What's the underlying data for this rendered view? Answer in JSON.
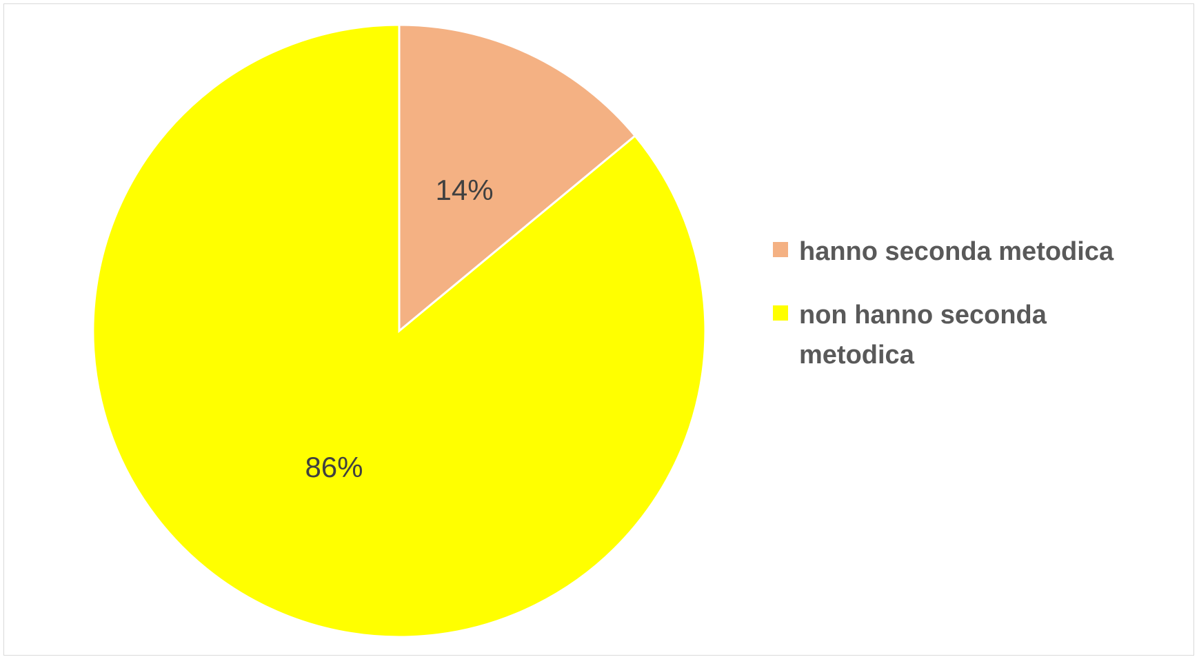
{
  "chart_data": {
    "type": "pie",
    "categories": [
      "hanno seconda metodica",
      "non hanno seconda metodica"
    ],
    "values": [
      14,
      86
    ],
    "value_labels": [
      "14%",
      "86%"
    ],
    "colors": [
      "#f4b183",
      "#ffff00"
    ],
    "legend": "right"
  }
}
